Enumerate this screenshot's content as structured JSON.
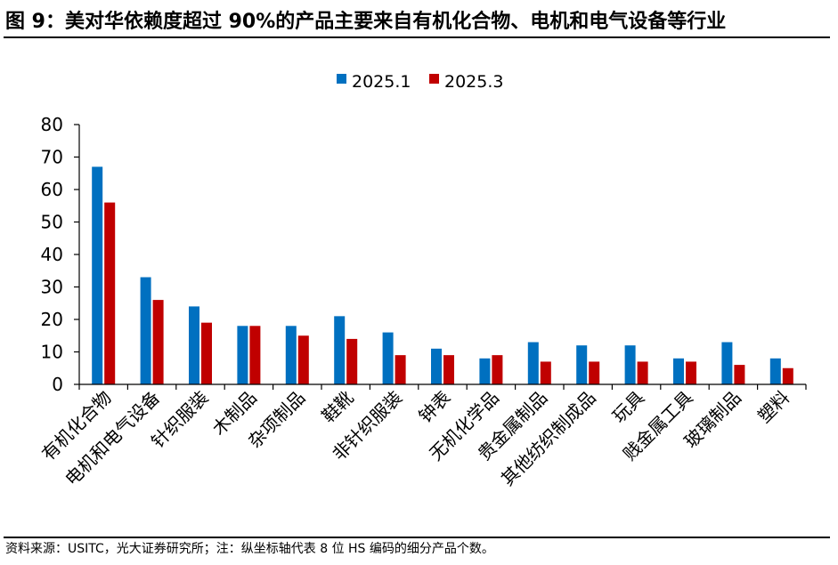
{
  "title": "图 9：美对华依赖度超过 90%的产品主要来自有机化合物、电机和电气设备等行业",
  "source": "资料来源：USITC，光大证券研究所；注：纵坐标轴代表 8 位 HS 编码的细分产品个数。",
  "colors": {
    "series1": "#0070C0",
    "series2": "#C00000",
    "axis": "#000000"
  },
  "chart_data": {
    "type": "bar",
    "title": "",
    "xlabel": "",
    "ylabel": "",
    "ylim": [
      0,
      80
    ],
    "yticks": [
      0,
      10,
      20,
      30,
      40,
      50,
      60,
      70,
      80
    ],
    "grid": false,
    "legend_position": "top",
    "categories": [
      "有机化合物",
      "电机和电气设备",
      "针织服装",
      "木制品",
      "杂项制品",
      "鞋靴",
      "非针织服装",
      "钟表",
      "无机化学品",
      "贵金属制品",
      "其他纺织制成品",
      "玩具",
      "贱金属工具",
      "玻璃制品",
      "塑料"
    ],
    "series": [
      {
        "name": "2025.1",
        "values": [
          67,
          33,
          24,
          18,
          18,
          21,
          16,
          11,
          8,
          13,
          12,
          12,
          8,
          13,
          8
        ]
      },
      {
        "name": "2025.3",
        "values": [
          56,
          26,
          19,
          18,
          15,
          14,
          9,
          9,
          9,
          7,
          7,
          7,
          7,
          6,
          5
        ]
      }
    ]
  }
}
